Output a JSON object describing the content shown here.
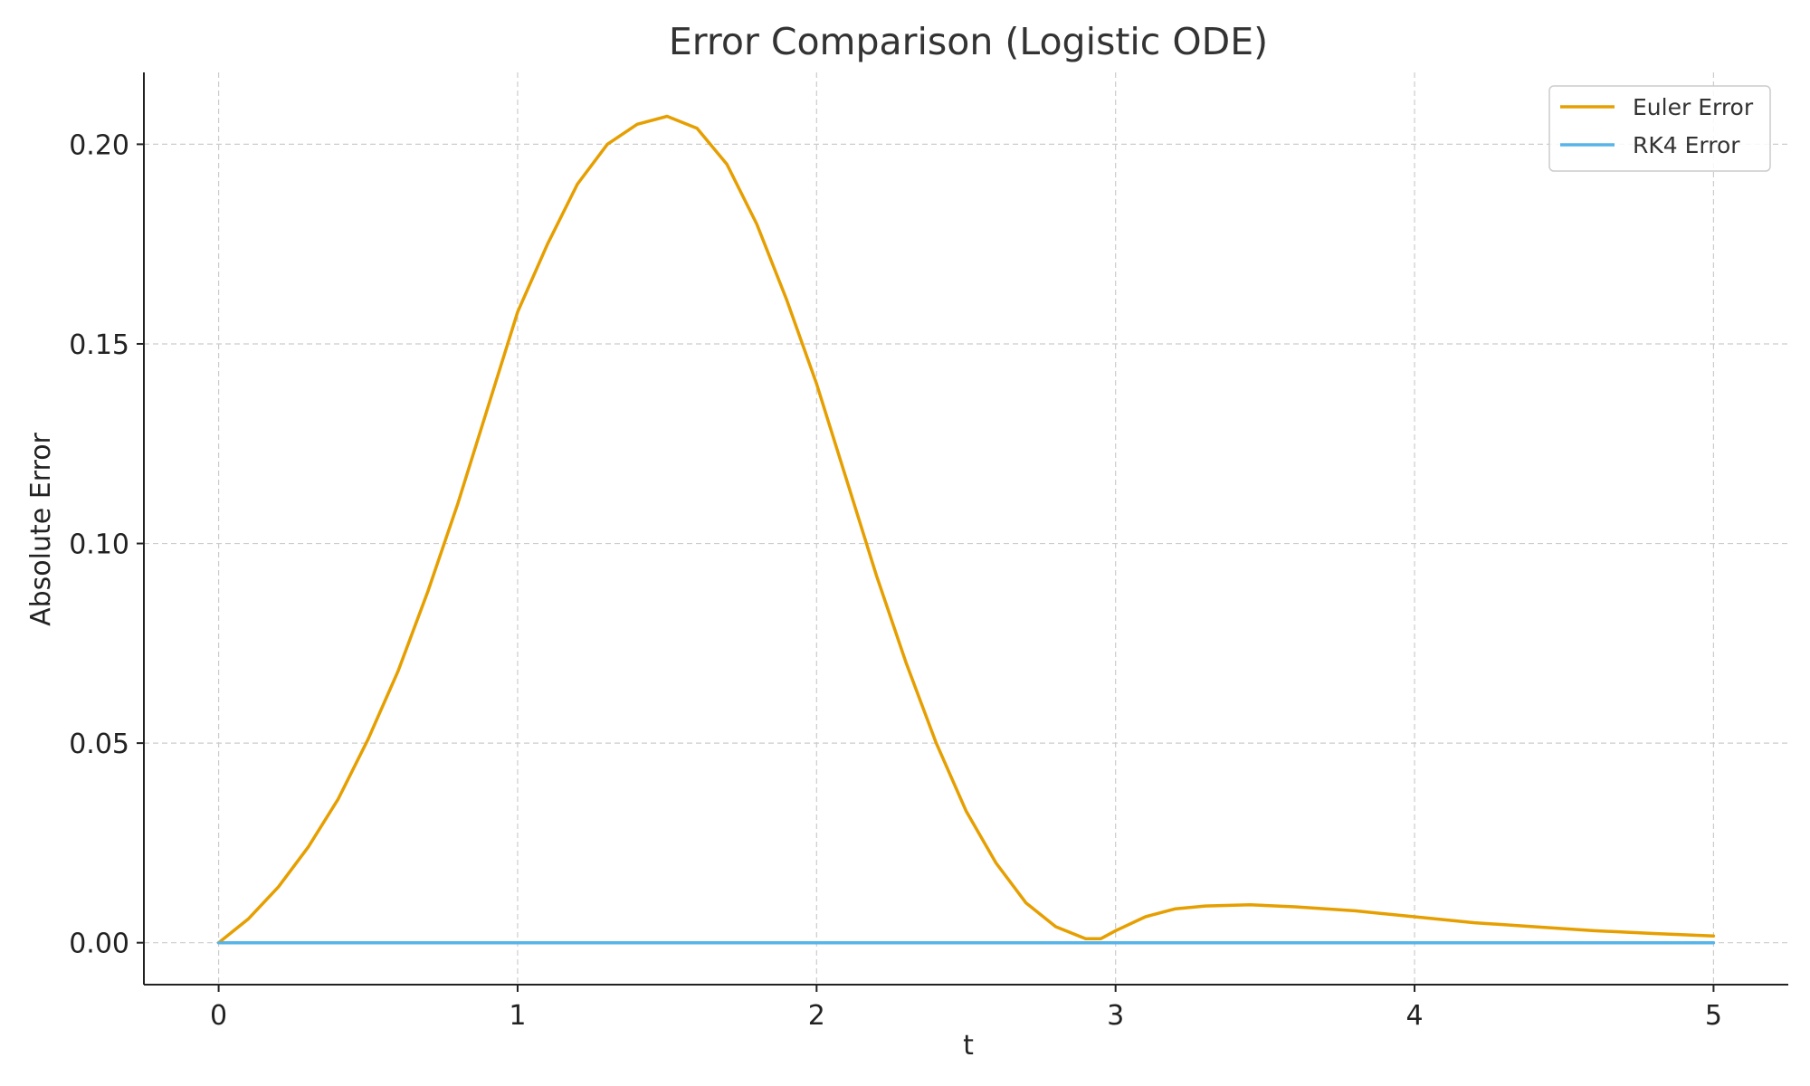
{
  "chart_data": {
    "type": "line",
    "title": "Error Comparison (Logistic ODE)",
    "xlabel": "t",
    "ylabel": "Absolute Error",
    "xlim": [
      -0.25,
      5.25
    ],
    "ylim": [
      -0.0105,
      0.218
    ],
    "xticks": [
      0,
      1,
      2,
      3,
      4,
      5
    ],
    "xtick_labels": [
      "0",
      "1",
      "2",
      "3",
      "4",
      "5"
    ],
    "yticks": [
      0.0,
      0.05,
      0.1,
      0.15,
      0.2
    ],
    "ytick_labels": [
      "0.00",
      "0.05",
      "0.10",
      "0.15",
      "0.20"
    ],
    "grid": true,
    "legend_position": "top-right",
    "series": [
      {
        "name": "Euler Error",
        "color": "#E69F00",
        "x": [
          0,
          0.1,
          0.2,
          0.3,
          0.4,
          0.5,
          0.6,
          0.7,
          0.8,
          0.9,
          1.0,
          1.1,
          1.2,
          1.3,
          1.4,
          1.5,
          1.6,
          1.7,
          1.8,
          1.9,
          2.0,
          2.1,
          2.2,
          2.3,
          2.4,
          2.5,
          2.6,
          2.7,
          2.8,
          2.9,
          2.95,
          3.0,
          3.1,
          3.2,
          3.3,
          3.45,
          3.6,
          3.8,
          4.0,
          4.2,
          4.4,
          4.6,
          4.8,
          5.0
        ],
        "y": [
          0.0,
          0.006,
          0.014,
          0.024,
          0.036,
          0.051,
          0.068,
          0.088,
          0.11,
          0.134,
          0.158,
          0.175,
          0.19,
          0.2,
          0.205,
          0.207,
          0.204,
          0.195,
          0.18,
          0.161,
          0.14,
          0.116,
          0.092,
          0.07,
          0.05,
          0.033,
          0.02,
          0.01,
          0.004,
          0.001,
          0.001,
          0.003,
          0.0065,
          0.0085,
          0.0092,
          0.0095,
          0.009,
          0.008,
          0.0065,
          0.005,
          0.004,
          0.003,
          0.0023,
          0.0017
        ]
      },
      {
        "name": "RK4 Error",
        "color": "#56B4E9",
        "x": [
          0,
          5
        ],
        "y": [
          0.0,
          0.0
        ]
      }
    ]
  }
}
